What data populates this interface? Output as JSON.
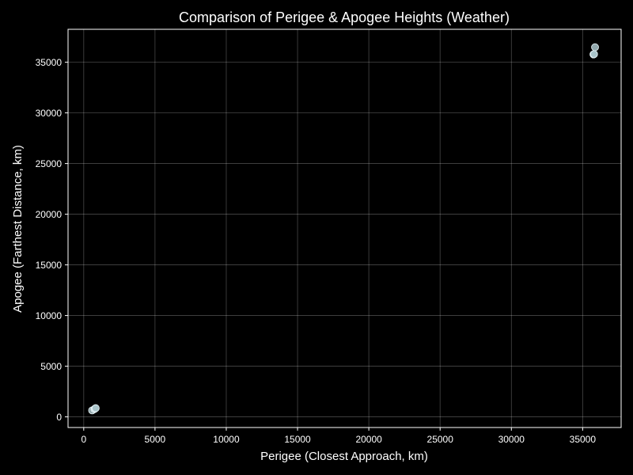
{
  "chart_data": {
    "type": "scatter",
    "title": "Comparison of Perigee & Apogee Heights (Weather)",
    "xlabel": "Perigee (Closest Approach, km)",
    "ylabel": "Apogee (Farthest Distance, km)",
    "xlim": [
      -1100,
      37700
    ],
    "ylim": [
      -1050,
      38250
    ],
    "xticks": [
      0,
      5000,
      10000,
      15000,
      20000,
      25000,
      30000,
      35000
    ],
    "yticks": [
      0,
      5000,
      10000,
      15000,
      20000,
      25000,
      30000,
      35000
    ],
    "grid": true,
    "colors": {
      "background": "#000000",
      "text": "#ffffff",
      "point_fill": "#a9c4ca",
      "point_edge": "#e8f4f8"
    },
    "points": [
      {
        "x": 590,
        "y": 640
      },
      {
        "x": 750,
        "y": 760
      },
      {
        "x": 800,
        "y": 820
      },
      {
        "x": 840,
        "y": 860
      },
      {
        "x": 35760,
        "y": 35770
      },
      {
        "x": 35780,
        "y": 35790
      },
      {
        "x": 35800,
        "y": 35800
      },
      {
        "x": 35870,
        "y": 36480
      }
    ]
  }
}
